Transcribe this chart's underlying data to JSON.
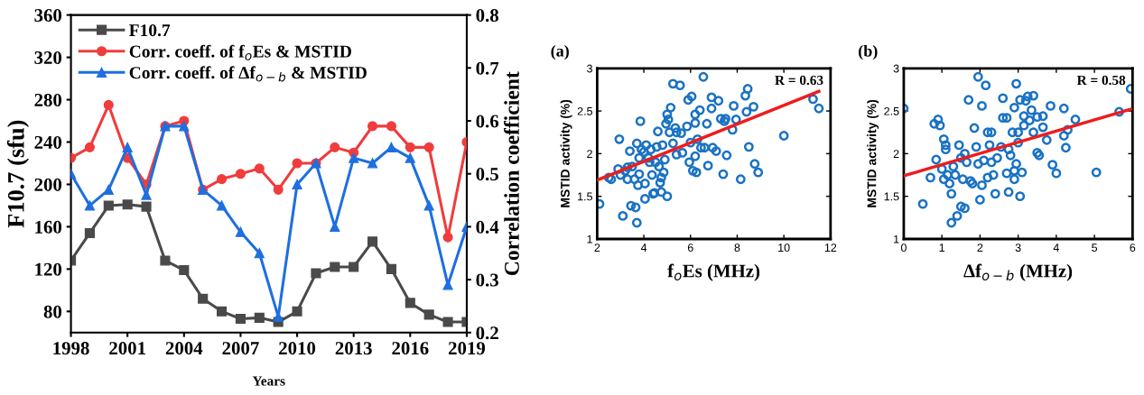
{
  "chart_data": [
    {
      "type": "line",
      "xlabel": "Years",
      "ylabel": "F10.7 (sfu)",
      "y2label": "Correlation coefficient",
      "legend": "top left",
      "x": [
        1998,
        1999,
        2000,
        2001,
        2002,
        2003,
        2004,
        2005,
        2006,
        2007,
        2008,
        2009,
        2010,
        2011,
        2012,
        2013,
        2014,
        2015,
        2016,
        2017,
        2018,
        2019
      ],
      "xlim": [
        1998,
        2019
      ],
      "xticks": [
        1998,
        2001,
        2004,
        2007,
        2010,
        2013,
        2016,
        2019
      ],
      "ylim": [
        60,
        360
      ],
      "yticks": [
        80,
        120,
        160,
        200,
        240,
        280,
        320,
        360
      ],
      "y2lim": [
        0.2,
        0.8
      ],
      "y2ticks": [
        0.2,
        0.3,
        0.4,
        0.5,
        0.6,
        0.7,
        0.8
      ],
      "series": [
        {
          "name": "F10.7",
          "color": "#4a4a4a",
          "marker": "square",
          "values": [
            128,
            154,
            180,
            181,
            179,
            128,
            119,
            92,
            80,
            73,
            74,
            70,
            80,
            116,
            122,
            122,
            146,
            120,
            88,
            77,
            70,
            70
          ]
        },
        {
          "name": "Corr. coeff. of f$_{o}$Es & MSTID",
          "color": "#f03c3c",
          "marker": "circle",
          "axis": "y2",
          "values": [
            0.53,
            0.55,
            0.63,
            0.53,
            0.48,
            0.59,
            0.6,
            0.47,
            0.49,
            0.5,
            0.51,
            0.47,
            0.52,
            0.52,
            0.55,
            0.54,
            0.59,
            0.59,
            0.55,
            0.55,
            0.38,
            0.56
          ]
        },
        {
          "name": "Corr. coeff. of Δf$_{o−b}$ & MSTID",
          "color": "#1e6fe0",
          "marker": "triangle",
          "axis": "y2",
          "values": [
            0.5,
            0.44,
            0.47,
            0.55,
            0.46,
            0.59,
            0.59,
            0.47,
            0.44,
            0.39,
            0.35,
            0.23,
            0.48,
            0.52,
            0.4,
            0.53,
            0.52,
            0.55,
            0.53,
            0.44,
            0.29,
            0.4
          ]
        }
      ]
    },
    {
      "type": "scatter",
      "title": "(a)",
      "xlabel": "f$_{o}$Es (MHz)",
      "ylabel": "MSTID activity (%)",
      "annotations": [
        "R = 0.63"
      ],
      "xlim": [
        2,
        12
      ],
      "xticks": [
        2,
        4,
        6,
        8,
        10,
        12
      ],
      "ylim": [
        1,
        3
      ],
      "yticks": [
        1,
        1.5,
        2,
        2.5,
        3
      ],
      "series": [
        {
          "color": "#1a72c2",
          "marker": "circle",
          "x": [
            2.1,
            2.5,
            2.6,
            2.9,
            2.95,
            3.0,
            3.1,
            3.2,
            3.3,
            3.3,
            3.4,
            3.45,
            3.5,
            3.6,
            3.65,
            3.7,
            3.7,
            3.75,
            3.8,
            3.8,
            3.85,
            3.9,
            4.0,
            4.05,
            4.1,
            4.05,
            4.2,
            4.25,
            4.3,
            4.35,
            4.4,
            4.45,
            4.5,
            4.55,
            4.6,
            4.65,
            4.7,
            4.75,
            4.75,
            4.8,
            4.85,
            4.9,
            4.95,
            5.0,
            5.0,
            5.05,
            5.1,
            5.15,
            5.25,
            5.25,
            5.35,
            5.4,
            5.4,
            5.55,
            5.6,
            5.65,
            5.85,
            5.9,
            5.95,
            6.0,
            6.05,
            6.1,
            6.2,
            6.2,
            6.2,
            6.25,
            6.3,
            6.4,
            6.45,
            6.55,
            6.6,
            6.7,
            6.75,
            6.9,
            6.9,
            6.95,
            7.1,
            7.2,
            7.3,
            7.4,
            7.45,
            7.5,
            7.55,
            7.8,
            7.85,
            7.95,
            8.15,
            8.35,
            8.4,
            8.45,
            8.5,
            8.7,
            8.75,
            8.9,
            10.0,
            11.25,
            11.5
          ],
          "values": [
            1.41,
            1.72,
            1.7,
            1.82,
            2.17,
            1.75,
            1.27,
            1.8,
            1.84,
            1.7,
            2.03,
            1.39,
            1.85,
            1.7,
            1.37,
            2.12,
            1.19,
            1.63,
            1.76,
            1.95,
            2.38,
            2.05,
            2.02,
            1.65,
            2.1,
            1.47,
            1.95,
            1.9,
            2.05,
            1.75,
            1.53,
            1.54,
            1.9,
            2.08,
            2.26,
            1.85,
            1.66,
            1.72,
            1.55,
            2.1,
            1.78,
            1.93,
            2.35,
            2.46,
            1.5,
            2.4,
            2.25,
            2.54,
            2.82,
            2.12,
            2.3,
            1.99,
            2.25,
            2.8,
            2.24,
            2.01,
            2.32,
            2.63,
            1.9,
            2.13,
            2.67,
            1.8,
            2.46,
            1.97,
            2.36,
            1.78,
            2.17,
            2.51,
            2.07,
            2.9,
            2.07,
            2.35,
            1.86,
            2.53,
            2.66,
            2.07,
            2.03,
            2.62,
            2.41,
            1.76,
            2.38,
            2.41,
            1.98,
            2.28,
            2.56,
            2.4,
            1.7,
            2.68,
            2.49,
            2.76,
            2.08,
            2.55,
            1.88,
            1.78,
            2.21,
            2.64,
            2.53
          ]
        },
        {
          "type": "line",
          "color": "#ee1c1c",
          "marker": "none",
          "x": [
            2.0,
            11.5
          ],
          "values": [
            1.69,
            2.73
          ]
        }
      ]
    },
    {
      "type": "scatter",
      "title": "(b)",
      "xlabel": "Δf$_{o−b}$ (MHz)",
      "ylabel": "MSTID activity (%)",
      "annotations": [
        "R = 0.58"
      ],
      "xlim": [
        0,
        6
      ],
      "xticks": [
        0,
        1,
        2,
        3,
        4,
        5,
        6
      ],
      "ylim": [
        1,
        3
      ],
      "yticks": [
        1,
        1.5,
        2,
        2.5,
        3
      ],
      "series": [
        {
          "color": "#1a72c2",
          "marker": "circle",
          "x": [
            0.0,
            0.5,
            0.7,
            0.8,
            0.85,
            0.9,
            0.95,
            1.0,
            1.05,
            1.05,
            1.1,
            1.1,
            1.15,
            1.2,
            1.25,
            1.25,
            1.3,
            1.35,
            1.4,
            1.45,
            1.5,
            1.5,
            1.55,
            1.6,
            1.6,
            1.65,
            1.7,
            1.75,
            1.8,
            1.85,
            1.9,
            1.95,
            1.95,
            2.0,
            2.05,
            2.05,
            2.1,
            2.15,
            2.2,
            2.2,
            2.25,
            2.3,
            2.3,
            2.35,
            2.4,
            2.45,
            2.55,
            2.6,
            2.6,
            2.7,
            2.7,
            2.75,
            2.75,
            2.8,
            2.85,
            2.9,
            2.9,
            2.9,
            2.95,
            2.95,
            3.0,
            3.0,
            3.05,
            3.05,
            3.1,
            3.15,
            3.15,
            3.2,
            3.25,
            3.3,
            3.35,
            3.4,
            3.4,
            3.5,
            3.5,
            3.55,
            3.65,
            3.65,
            3.75,
            3.85,
            3.9,
            4.0,
            4.2,
            4.2,
            4.25,
            4.3,
            4.5,
            5.05,
            5.65,
            5.95
          ],
          "values": [
            2.53,
            1.41,
            1.72,
            2.35,
            1.93,
            2.4,
            2.33,
            1.82,
            1.7,
            2.17,
            2.1,
            2.05,
            1.75,
            1.65,
            1.53,
            1.19,
            1.85,
            1.75,
            1.27,
            2.1,
            1.95,
            1.38,
            1.7,
            2.0,
            1.36,
            1.9,
            2.63,
            1.68,
            1.65,
            2.3,
            2.08,
            1.88,
            2.9,
            1.46,
            2.56,
            1.63,
            1.92,
            2.8,
            2.25,
            1.72,
            2.1,
            2.25,
            1.9,
            1.75,
            1.53,
            1.95,
            2.08,
            2.42,
            2.65,
            2.42,
            1.77,
            2.05,
            1.55,
            1.98,
            2.25,
            2.54,
            1.7,
            1.8,
            2.82,
            1.88,
            2.13,
            2.25,
            2.63,
            1.5,
            1.78,
            2.44,
            2.33,
            2.62,
            2.67,
            2.39,
            2.51,
            2.68,
            2.25,
            2.43,
            2.01,
            1.98,
            2.44,
            2.31,
            2.16,
            2.56,
            1.87,
            1.77,
            2.53,
            2.21,
            2.07,
            2.28,
            2.4,
            1.78,
            2.49,
            2.76
          ]
        },
        {
          "type": "line",
          "color": "#ee1c1c",
          "marker": "none",
          "x": [
            0.0,
            5.95
          ],
          "values": [
            1.74,
            2.52
          ]
        }
      ]
    }
  ]
}
